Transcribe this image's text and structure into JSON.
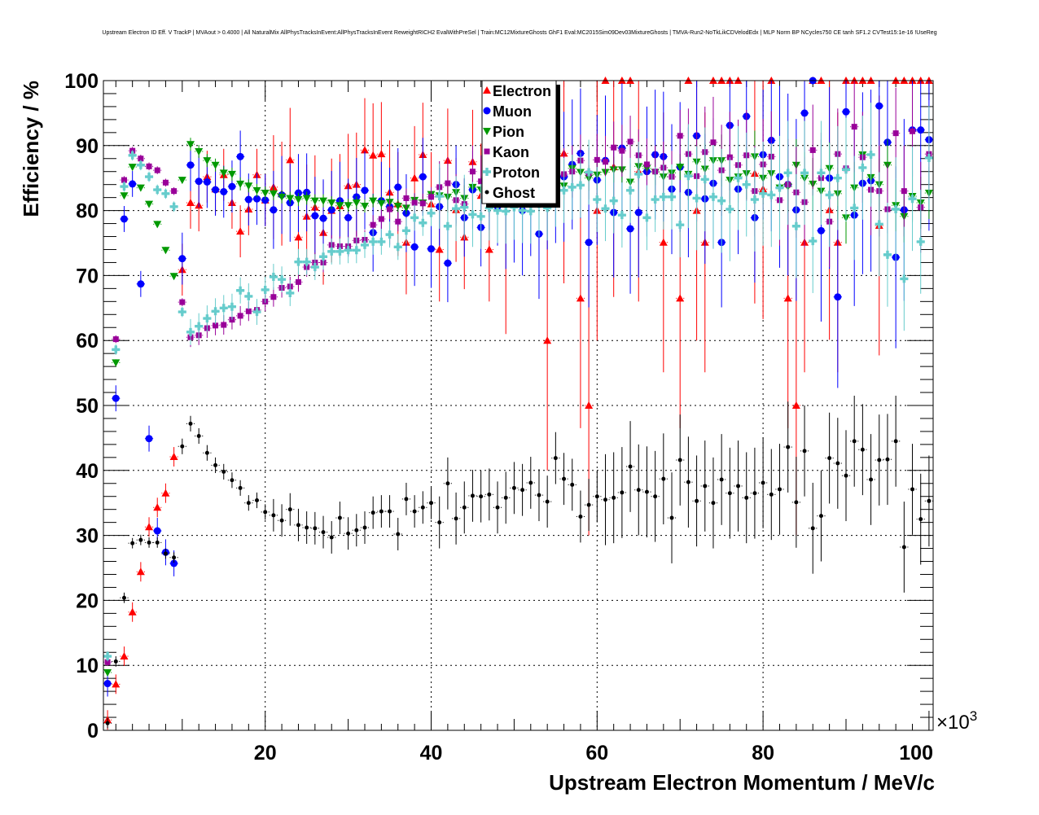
{
  "chart_data": {
    "type": "scatter",
    "title": "Upstream Electron ID Eff. V TrackP | MVAout > 0.4000 | All NaturalMix AllPhysTracksInEvent:AllPhysTracksInEvent ReweightRICH2 EvalWithPreSel | Train:MC12MixtureGhosts GhF1 Eval:MC2015Sim09Dev03MixtureGhosts | TMVA-Run2-NoTkLikCDVelodEdx | MLP Norm BP NCycles750 CE tanh SF1.2 CVTest15:1e-16 !UseReg",
    "xlabel": "Upstream Electron Momentum / MeV/c",
    "ylabel": "Efficiency / %",
    "x_multiplier": "×10",
    "x_multiplier_exp": "3",
    "xlim": [
      0.5,
      100.5
    ],
    "ylim": [
      0,
      100
    ],
    "xticks": [
      20,
      40,
      60,
      80,
      100
    ],
    "xtick_labels": [
      "20",
      "40",
      "60",
      "80",
      "100"
    ],
    "yticks": [
      0,
      10,
      20,
      30,
      40,
      50,
      60,
      70,
      80,
      90,
      100
    ],
    "ytick_labels": [
      "0",
      "10",
      "20",
      "30",
      "40",
      "50",
      "60",
      "70",
      "80",
      "90",
      "100"
    ],
    "grid": true,
    "legend_position": "top-center",
    "x_bin_start": 1,
    "x_bin_step": 1,
    "series": [
      {
        "name": "Electron",
        "color": "#ff0000",
        "marker": "triangle-up",
        "yerr_segments": [
          {
            "from": 1,
            "to": 9,
            "err": 1.5
          },
          {
            "from": 10,
            "to": 20,
            "err": 4
          },
          {
            "from": 21,
            "to": 47,
            "err": 8
          },
          {
            "from": 48,
            "to": 100,
            "err": 20
          }
        ],
        "values": [
          1.6,
          7.1,
          11.4,
          18.2,
          24.4,
          31.3,
          34.3,
          36.5,
          42.1,
          70.9,
          81.2,
          80.8,
          85.2,
          83.3,
          85.5,
          81.2,
          76.8,
          80.2,
          85.5,
          81.6,
          83.6,
          82.6,
          87.8,
          75.9,
          79.1,
          80.5,
          76.6,
          80.0,
          80.7,
          83.8,
          84.0,
          89.3,
          88.5,
          88.7,
          82.8,
          81.0,
          75.1,
          85.0,
          88.6,
          81.0,
          74.0,
          87.7,
          80.1,
          75.9,
          87.5,
          82.3,
          74.0,
          null,
          81.0,
          null,
          null,
          null,
          null,
          60.0,
          null,
          88.8,
          null,
          66.5,
          50.0,
          80.0,
          100,
          86.7,
          100,
          100,
          86.0,
          null,
          null,
          75.1,
          null,
          66.5,
          100,
          80.0,
          75.1,
          100,
          100,
          100,
          100,
          null,
          85.7,
          83.3,
          100,
          null,
          66.5,
          50.0,
          75.1,
          100,
          100,
          80.1,
          75.1,
          100,
          100,
          100,
          100,
          77.7,
          null,
          100,
          100,
          100,
          100,
          100
        ]
      },
      {
        "name": "Muon",
        "color": "#0000ff",
        "marker": "circle",
        "yerr_segments": [
          {
            "from": 1,
            "to": 9,
            "err": 2
          },
          {
            "from": 10,
            "to": 20,
            "err": 4
          },
          {
            "from": 21,
            "to": 48,
            "err": 6
          },
          {
            "from": 49,
            "to": 80,
            "err": 10
          },
          {
            "from": 81,
            "to": 100,
            "err": 14
          }
        ],
        "values": [
          7.2,
          51.1,
          78.7,
          84.1,
          68.7,
          44.9,
          30.7,
          27.4,
          25.7,
          72.6,
          87.0,
          84.5,
          84.4,
          83.2,
          82.9,
          83.7,
          88.3,
          81.7,
          81.8,
          81.6,
          80.1,
          82.4,
          81.2,
          82.7,
          82.8,
          79.2,
          78.8,
          80.1,
          81.5,
          78.9,
          82.1,
          83.1,
          76.6,
          81.5,
          80.6,
          83.6,
          79.6,
          74.4,
          85.2,
          74.1,
          80.6,
          71.9,
          84.0,
          78.9,
          83.2,
          77.4,
          83.0,
          80.6,
          81.0,
          82.0,
          80.0,
          83.0,
          76.4,
          84.0,
          85.0,
          85.2,
          87.1,
          88.8,
          75.1,
          84.7,
          87.7,
          79.7,
          89.6,
          77.2,
          79.7,
          86.0,
          88.6,
          88.3,
          83.3,
          86.7,
          82.8,
          91.5,
          81.8,
          84.2,
          75.1,
          93.1,
          83.3,
          94.5,
          78.9,
          88.6,
          90.8,
          85.2,
          84.0,
          80.1,
          95.0,
          100,
          76.9,
          85.0,
          66.7,
          95.2,
          79.3,
          84.2,
          84.6,
          96.1,
          90.5,
          72.8,
          80.1,
          92.4,
          92.4,
          90.9
        ]
      },
      {
        "name": "Pion",
        "color": "#009900",
        "marker": "triangle-down",
        "yerr_segments": [
          {
            "from": 1,
            "to": 10,
            "err": 0.5
          },
          {
            "from": 11,
            "to": 40,
            "err": 1
          },
          {
            "from": 41,
            "to": 70,
            "err": 2
          },
          {
            "from": 71,
            "to": 100,
            "err": 4
          }
        ],
        "values": [
          8.9,
          56.6,
          82.3,
          86.7,
          83.5,
          81.0,
          77.9,
          73.9,
          69.9,
          84.7,
          90.2,
          89.1,
          87.7,
          87.0,
          85.8,
          85.6,
          84.1,
          83.8,
          83.1,
          82.7,
          82.6,
          82.1,
          81.9,
          81.7,
          81.9,
          81.5,
          81.5,
          81.2,
          80.8,
          80.8,
          81.2,
          80.7,
          81.5,
          81.1,
          81.3,
          80.7,
          80.4,
          81.6,
          81.2,
          82.5,
          82.3,
          82.1,
          82.8,
          81.9,
          83.6,
          83.2,
          83.0,
          82.8,
          83.3,
          82.5,
          83.4,
          83.0,
          84.0,
          85.0,
          84.5,
          83.8,
          86.5,
          85.9,
          85.0,
          85.5,
          85.9,
          86.3,
          86.3,
          84.4,
          86.8,
          86.5,
          85.9,
          85.2,
          85.8,
          86.7,
          85.6,
          87.5,
          86.4,
          87.7,
          87.7,
          84.7,
          85.2,
          85.7,
          88.3,
          85.0,
          85.7,
          83.5,
          83.7,
          87.0,
          85.0,
          84.1,
          83.0,
          86.5,
          82.6,
          78.9,
          83.5,
          88.6,
          85.1,
          84.0,
          87.0,
          80.8,
          79.1,
          82.2,
          81.2,
          82.7
        ]
      },
      {
        "name": "Kaon",
        "color": "#990099",
        "marker": "square",
        "yerr_segments": [
          {
            "from": 1,
            "to": 10,
            "err": 0.6
          },
          {
            "from": 11,
            "to": 40,
            "err": 1.5
          },
          {
            "from": 41,
            "to": 70,
            "err": 4
          },
          {
            "from": 71,
            "to": 100,
            "err": 7
          }
        ],
        "values": [
          10.5,
          60.2,
          84.7,
          89.2,
          88.0,
          86.8,
          86.2,
          84.3,
          83.0,
          65.9,
          60.5,
          60.8,
          61.9,
          62.3,
          62.4,
          63.2,
          63.8,
          64.5,
          64.7,
          66.0,
          66.7,
          68.1,
          68.3,
          69.0,
          71.3,
          72.0,
          72.0,
          74.7,
          74.5,
          74.5,
          75.4,
          75.5,
          77.8,
          78.7,
          80.2,
          78.3,
          81.9,
          81.2,
          81.1,
          82.1,
          83.6,
          84.2,
          81.6,
          81.0,
          86.0,
          84.5,
          83.0,
          84.5,
          85.0,
          84.0,
          85.0,
          83.5,
          85.5,
          85.0,
          85.5,
          85.6,
          86.0,
          87.7,
          85.7,
          87.8,
          87.5,
          89.7,
          89.2,
          90.6,
          88.5,
          87.1,
          86.0,
          86.6,
          85.2,
          91.5,
          88.7,
          85.3,
          89.0,
          90.5,
          86.2,
          88.2,
          87.0,
          88.5,
          83.0,
          87.1,
          88.3,
          81.6,
          84.0,
          82.8,
          81.3,
          89.3,
          85.0,
          78.3,
          88.7,
          86.5,
          92.9,
          88.2,
          83.2,
          83.0,
          80.2,
          91.9,
          83.0,
          92.2,
          80.5,
          88.7
        ]
      },
      {
        "name": "Proton",
        "color": "#66cccc",
        "marker": "cross",
        "yerr_segments": [
          {
            "from": 1,
            "to": 10,
            "err": 0.8
          },
          {
            "from": 11,
            "to": 40,
            "err": 2
          },
          {
            "from": 41,
            "to": 70,
            "err": 5
          },
          {
            "from": 71,
            "to": 100,
            "err": 8
          }
        ],
        "values": [
          11.4,
          58.6,
          83.7,
          88.5,
          87.0,
          85.2,
          83.2,
          82.6,
          80.6,
          64.4,
          61.3,
          62.2,
          63.4,
          64.5,
          65.0,
          65.2,
          67.7,
          66.8,
          64.4,
          67.8,
          69.8,
          69.4,
          67.3,
          72.1,
          72.1,
          71.3,
          72.9,
          73.7,
          73.7,
          73.9,
          73.9,
          74.7,
          75.2,
          75.2,
          76.3,
          74.4,
          76.9,
          78.9,
          78.1,
          79.6,
          82.2,
          77.6,
          80.3,
          80.5,
          79.4,
          79.1,
          80.4,
          80.0,
          79.9,
          80.5,
          80.0,
          79.9,
          81.0,
          80.4,
          82.5,
          83.1,
          83.6,
          83.9,
          85.9,
          81.7,
          80.3,
          81.5,
          79.3,
          83.1,
          85.6,
          78.9,
          81.7,
          82.1,
          82.1,
          77.8,
          85.3,
          81.9,
          84.8,
          82.1,
          81.5,
          80.2,
          85.0,
          84.0,
          81.7,
          82.6,
          82.4,
          83.5,
          85.8,
          77.6,
          85.8,
          75.3,
          85.8,
          82.4,
          85.0,
          86.3,
          80.4,
          86.6,
          88.6,
          77.9,
          73.2,
          80.2,
          69.5,
          81.8,
          75.2,
          88.1
        ]
      },
      {
        "name": "Ghost",
        "color": "#000000",
        "marker": "dot",
        "yerr_segments": [
          {
            "from": 1,
            "to": 9,
            "err": 0.8
          },
          {
            "from": 10,
            "to": 20,
            "err": 1.2
          },
          {
            "from": 21,
            "to": 40,
            "err": 2.5
          },
          {
            "from": 41,
            "to": 60,
            "err": 4
          },
          {
            "from": 61,
            "to": 100,
            "err": 7
          }
        ],
        "values": [
          1.1,
          10.6,
          20.4,
          28.8,
          29.3,
          28.9,
          28.9,
          27.2,
          26.6,
          43.7,
          47.2,
          45.3,
          42.7,
          40.8,
          39.8,
          38.5,
          37.3,
          35.0,
          35.4,
          33.6,
          33.1,
          32.3,
          34.0,
          31.6,
          31.2,
          31.1,
          30.5,
          29.7,
          32.7,
          30.3,
          30.8,
          31.2,
          33.5,
          33.7,
          33.7,
          30.2,
          35.6,
          33.7,
          34.3,
          35.0,
          32.0,
          38.0,
          32.6,
          34.3,
          36.1,
          36.0,
          36.3,
          34.3,
          35.8,
          37.3,
          37.0,
          38.1,
          36.2,
          35.2,
          41.9,
          38.7,
          37.8,
          32.9,
          34.7,
          36.0,
          35.5,
          35.8,
          36.6,
          40.6,
          37.0,
          36.7,
          36.0,
          38.7,
          32.7,
          41.6,
          38.2,
          35.3,
          37.6,
          35.0,
          38.6,
          36.5,
          37.6,
          35.8,
          36.5,
          38.1,
          36.3,
          37.1,
          43.6,
          35.1,
          43.0,
          31.1,
          33.0,
          41.9,
          41.1,
          39.2,
          44.5,
          43.2,
          38.6,
          41.6,
          41.7,
          44.5,
          28.2,
          37.1,
          32.5,
          35.3
        ]
      }
    ]
  }
}
